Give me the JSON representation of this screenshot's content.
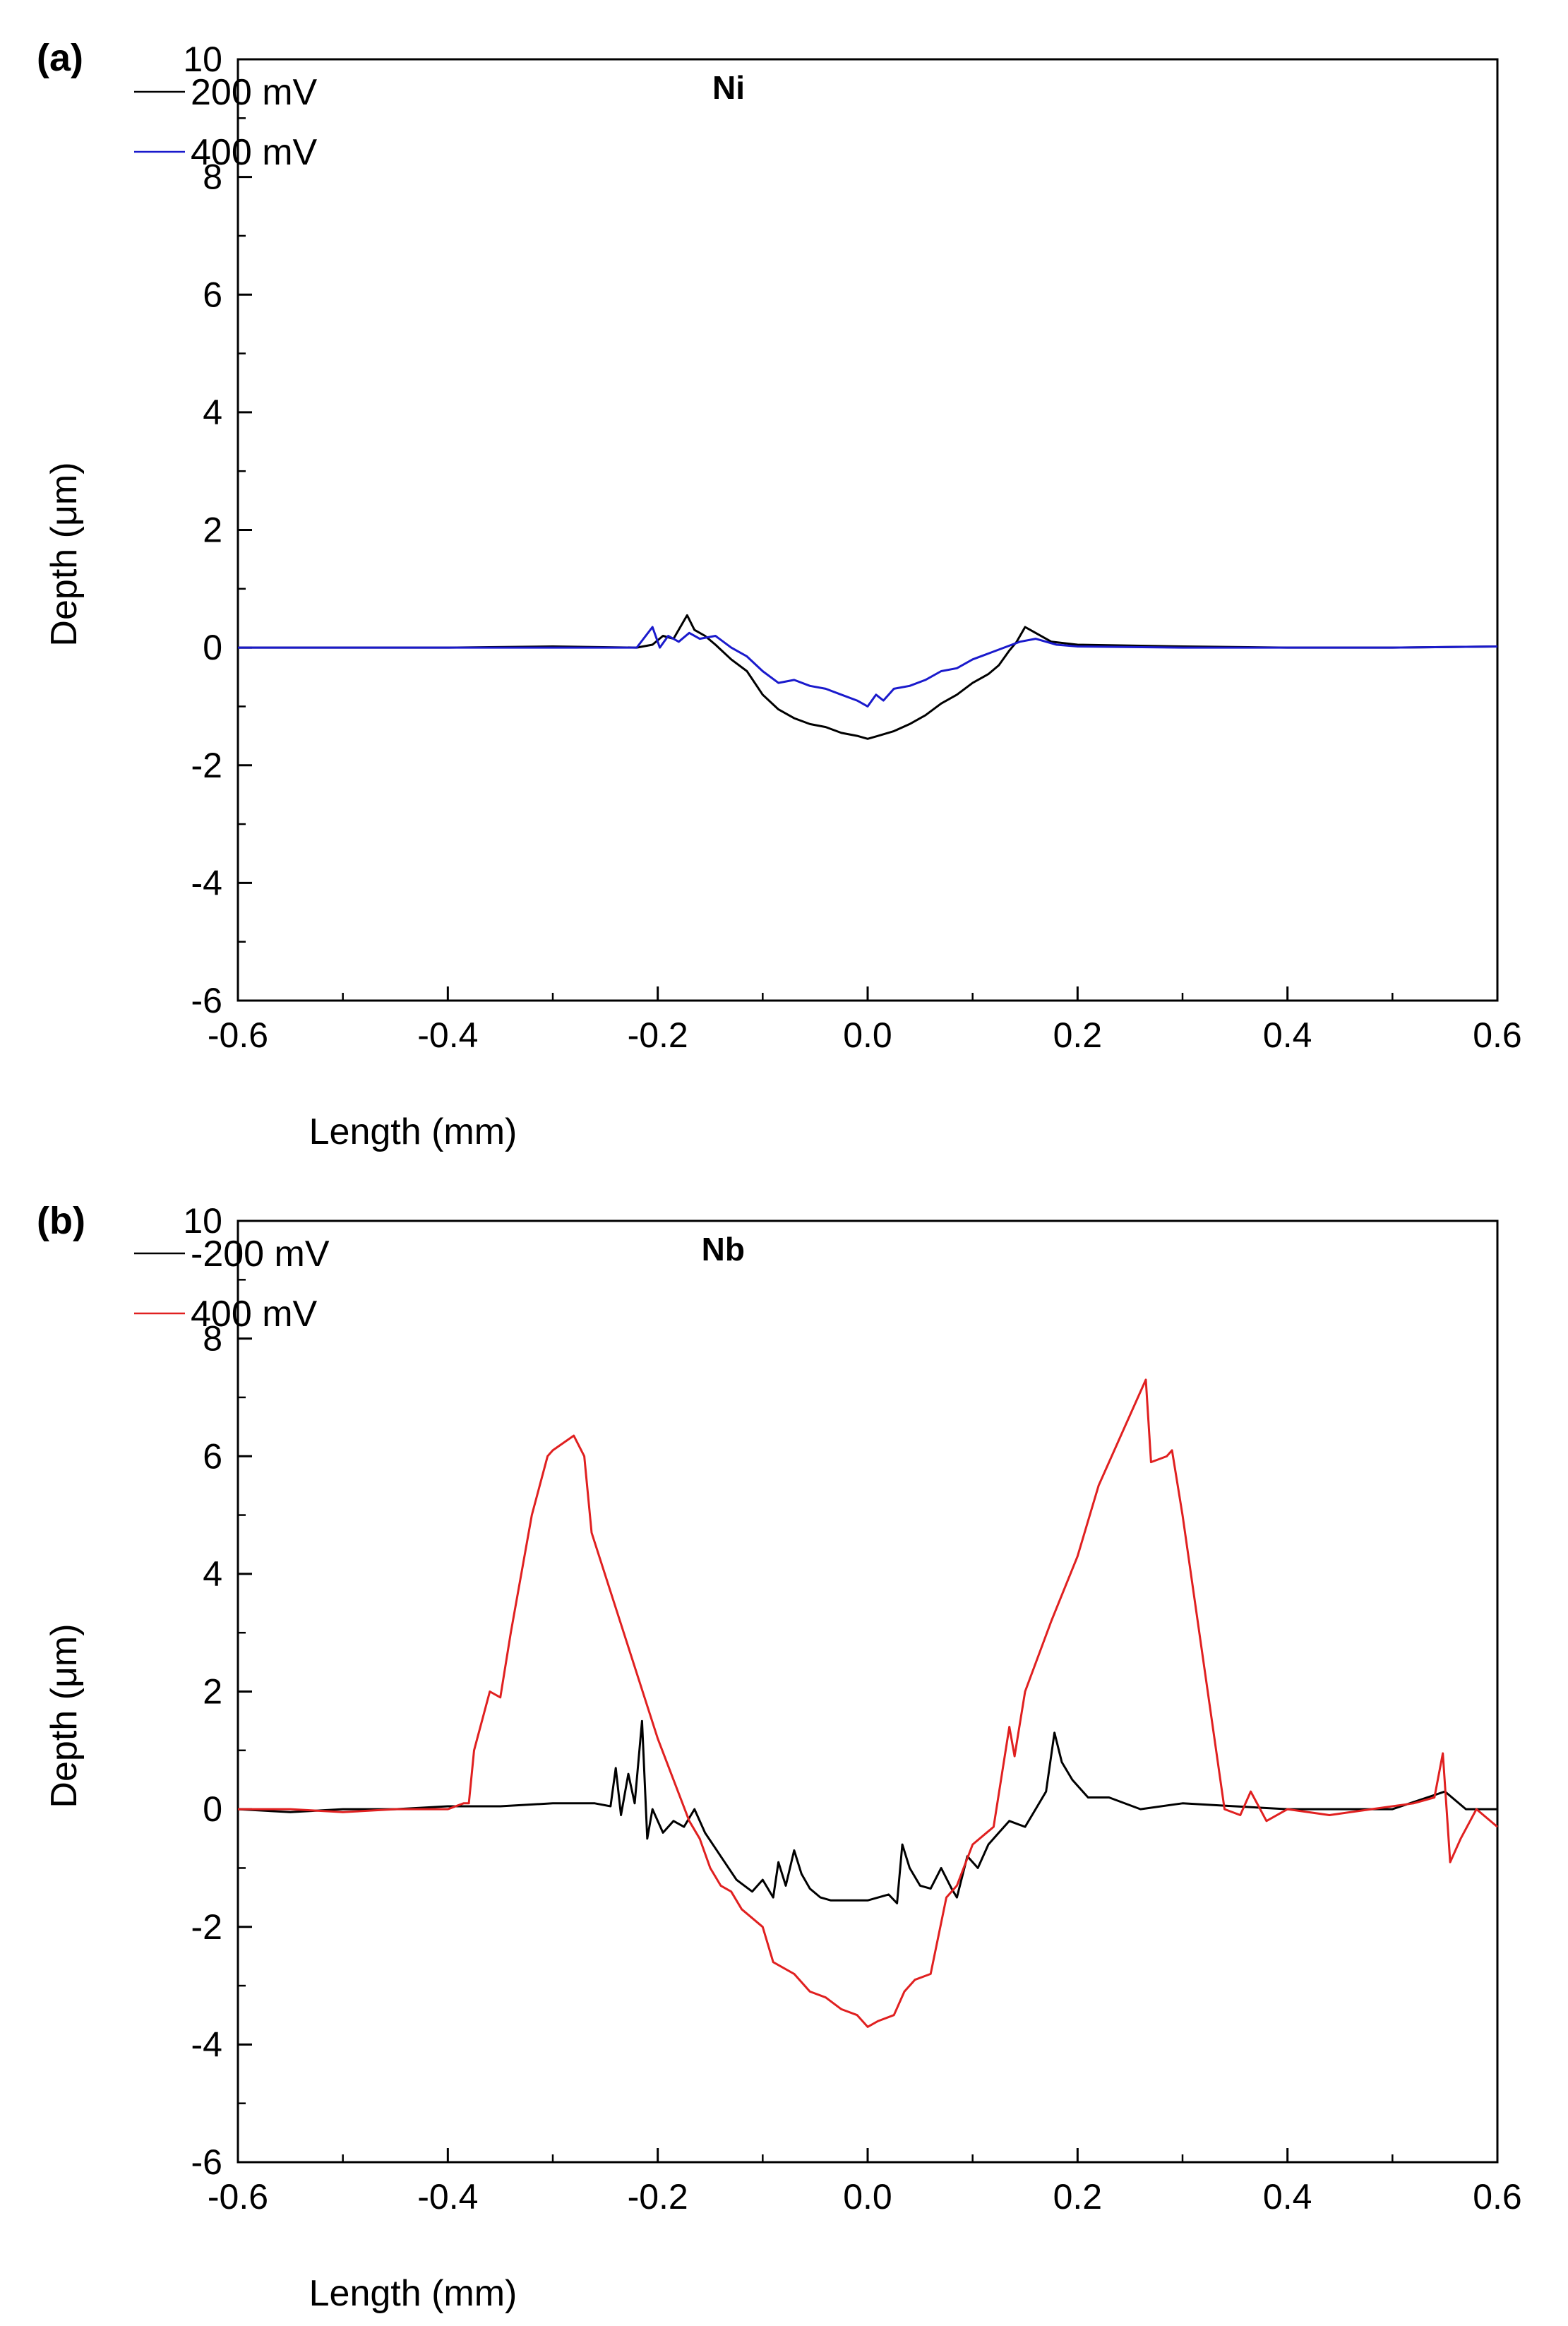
{
  "chart_data": [
    {
      "type": "line",
      "panel_label": "(a)",
      "tag": "Ni",
      "xlabel": "Length (mm)",
      "ylabel": "Depth (μm)",
      "xlim": [
        -0.6,
        0.6
      ],
      "ylim": [
        -6,
        10
      ],
      "xticks": [
        -0.6,
        -0.4,
        -0.2,
        0.0,
        0.2,
        0.4,
        0.6
      ],
      "xtick_labels": [
        "-0.6",
        "-0.4",
        "-0.2",
        "0.0",
        "0.2",
        "0.4",
        "0.6"
      ],
      "yticks": [
        -6,
        -4,
        -2,
        0,
        2,
        4,
        6,
        8,
        10
      ],
      "ytick_labels": [
        "-6",
        "-4",
        "-2",
        "0",
        "2",
        "4",
        "6",
        "8",
        "10"
      ],
      "legend_position": "top-left",
      "series": [
        {
          "name": "200 mV",
          "color": "#000000",
          "x": [
            -0.6,
            -0.5,
            -0.4,
            -0.3,
            -0.22,
            -0.205,
            -0.195,
            -0.185,
            -0.172,
            -0.165,
            -0.155,
            -0.145,
            -0.13,
            -0.115,
            -0.1,
            -0.085,
            -0.07,
            -0.055,
            -0.04,
            -0.025,
            -0.01,
            0.0,
            0.01,
            0.025,
            0.04,
            0.055,
            0.07,
            0.085,
            0.1,
            0.115,
            0.125,
            0.135,
            0.142,
            0.15,
            0.16,
            0.175,
            0.2,
            0.3,
            0.4,
            0.5,
            0.6
          ],
          "y": [
            0.0,
            0.0,
            0.0,
            0.02,
            0.0,
            0.05,
            0.2,
            0.15,
            0.55,
            0.3,
            0.2,
            0.05,
            -0.2,
            -0.4,
            -0.8,
            -1.05,
            -1.2,
            -1.3,
            -1.35,
            -1.45,
            -1.5,
            -1.55,
            -1.5,
            -1.42,
            -1.3,
            -1.15,
            -0.95,
            -0.8,
            -0.6,
            -0.45,
            -0.3,
            -0.05,
            0.1,
            0.35,
            0.25,
            0.1,
            0.05,
            0.02,
            0.0,
            0.0,
            0.02
          ]
        },
        {
          "name": "400 mV",
          "color": "#1a1acc",
          "x": [
            -0.6,
            -0.5,
            -0.4,
            -0.3,
            -0.22,
            -0.205,
            -0.198,
            -0.19,
            -0.18,
            -0.17,
            -0.16,
            -0.145,
            -0.13,
            -0.115,
            -0.1,
            -0.085,
            -0.07,
            -0.055,
            -0.04,
            -0.025,
            -0.01,
            0.0,
            0.008,
            0.015,
            0.025,
            0.04,
            0.055,
            0.07,
            0.085,
            0.1,
            0.115,
            0.13,
            0.145,
            0.16,
            0.18,
            0.2,
            0.3,
            0.4,
            0.5,
            0.6
          ],
          "y": [
            0.0,
            0.0,
            0.0,
            0.0,
            0.0,
            0.35,
            0.0,
            0.2,
            0.1,
            0.25,
            0.15,
            0.2,
            0.0,
            -0.15,
            -0.4,
            -0.6,
            -0.55,
            -0.65,
            -0.7,
            -0.8,
            -0.9,
            -1.0,
            -0.8,
            -0.9,
            -0.7,
            -0.65,
            -0.55,
            -0.4,
            -0.35,
            -0.2,
            -0.1,
            0.0,
            0.1,
            0.15,
            0.05,
            0.02,
            0.0,
            0.0,
            0.0,
            0.02
          ]
        }
      ]
    },
    {
      "type": "line",
      "panel_label": "(b)",
      "tag": "Nb",
      "xlabel": "Length (mm)",
      "ylabel": "Depth (μm)",
      "xlim": [
        -0.6,
        0.6
      ],
      "ylim": [
        -6,
        10
      ],
      "xticks": [
        -0.6,
        -0.4,
        -0.2,
        0.0,
        0.2,
        0.4,
        0.6
      ],
      "xtick_labels": [
        "-0.6",
        "-0.4",
        "-0.2",
        "0.0",
        "0.2",
        "0.4",
        "0.6"
      ],
      "yticks": [
        -6,
        -4,
        -2,
        0,
        2,
        4,
        6,
        8,
        10
      ],
      "ytick_labels": [
        "-6",
        "-4",
        "-2",
        "0",
        "2",
        "4",
        "6",
        "8",
        "10"
      ],
      "legend_position": "top-left",
      "series": [
        {
          "name": "-200 mV",
          "color": "#000000",
          "x": [
            -0.6,
            -0.55,
            -0.5,
            -0.45,
            -0.4,
            -0.35,
            -0.3,
            -0.26,
            -0.245,
            -0.24,
            -0.235,
            -0.228,
            -0.222,
            -0.215,
            -0.21,
            -0.205,
            -0.195,
            -0.185,
            -0.175,
            -0.165,
            -0.155,
            -0.14,
            -0.125,
            -0.11,
            -0.1,
            -0.09,
            -0.085,
            -0.078,
            -0.07,
            -0.063,
            -0.055,
            -0.045,
            -0.035,
            -0.02,
            0.0,
            0.02,
            0.028,
            0.033,
            0.04,
            0.05,
            0.06,
            0.07,
            0.08,
            0.085,
            0.095,
            0.105,
            0.115,
            0.125,
            0.135,
            0.15,
            0.16,
            0.17,
            0.178,
            0.185,
            0.195,
            0.21,
            0.23,
            0.26,
            0.3,
            0.35,
            0.4,
            0.45,
            0.5,
            0.55,
            0.57,
            0.6
          ],
          "y": [
            0.0,
            -0.05,
            0.0,
            0.0,
            0.05,
            0.05,
            0.1,
            0.1,
            0.05,
            0.7,
            -0.1,
            0.6,
            0.1,
            1.5,
            -0.5,
            0.0,
            -0.4,
            -0.2,
            -0.3,
            0.0,
            -0.4,
            -0.8,
            -1.2,
            -1.4,
            -1.2,
            -1.5,
            -0.9,
            -1.3,
            -0.7,
            -1.1,
            -1.35,
            -1.5,
            -1.55,
            -1.55,
            -1.55,
            -1.45,
            -1.6,
            -0.6,
            -1.0,
            -1.3,
            -1.35,
            -1.0,
            -1.35,
            -1.5,
            -0.8,
            -1.0,
            -0.6,
            -0.4,
            -0.2,
            -0.3,
            0.0,
            0.3,
            1.3,
            0.8,
            0.5,
            0.2,
            0.2,
            0.0,
            0.1,
            0.05,
            0.0,
            0.0,
            0.0,
            0.3,
            0.0,
            0.0
          ]
        },
        {
          "name": "400 mV",
          "color": "#e02020",
          "x": [
            -0.6,
            -0.55,
            -0.5,
            -0.45,
            -0.4,
            -0.385,
            -0.38,
            -0.375,
            -0.36,
            -0.35,
            -0.34,
            -0.32,
            -0.305,
            -0.3,
            -0.28,
            -0.27,
            -0.263,
            -0.2,
            -0.17,
            -0.16,
            -0.15,
            -0.14,
            -0.13,
            -0.12,
            -0.1,
            -0.09,
            -0.07,
            -0.055,
            -0.04,
            -0.025,
            -0.01,
            0.0,
            0.01,
            0.025,
            0.035,
            0.045,
            0.06,
            0.075,
            0.085,
            0.1,
            0.12,
            0.135,
            0.14,
            0.15,
            0.175,
            0.2,
            0.22,
            0.245,
            0.265,
            0.27,
            0.285,
            0.29,
            0.3,
            0.34,
            0.355,
            0.365,
            0.38,
            0.4,
            0.44,
            0.48,
            0.52,
            0.54,
            0.548,
            0.555,
            0.565,
            0.58,
            0.6
          ],
          "y": [
            0.0,
            0.0,
            -0.05,
            0.0,
            0.0,
            0.1,
            0.1,
            1.0,
            2.0,
            1.9,
            3.0,
            5.0,
            6.0,
            6.1,
            6.35,
            6.0,
            4.7,
            1.2,
            -0.2,
            -0.5,
            -1.0,
            -1.3,
            -1.4,
            -1.7,
            -2.0,
            -2.6,
            -2.8,
            -3.1,
            -3.2,
            -3.4,
            -3.5,
            -3.7,
            -3.6,
            -3.5,
            -3.1,
            -2.9,
            -2.8,
            -1.5,
            -1.3,
            -0.6,
            -0.3,
            1.4,
            0.9,
            2.0,
            3.2,
            4.3,
            5.5,
            6.5,
            7.3,
            5.9,
            6.0,
            6.1,
            5.0,
            0.0,
            -0.1,
            0.3,
            -0.2,
            0.0,
            -0.1,
            0.0,
            0.1,
            0.2,
            0.95,
            -0.9,
            -0.5,
            0.0,
            -0.3
          ]
        }
      ]
    }
  ]
}
